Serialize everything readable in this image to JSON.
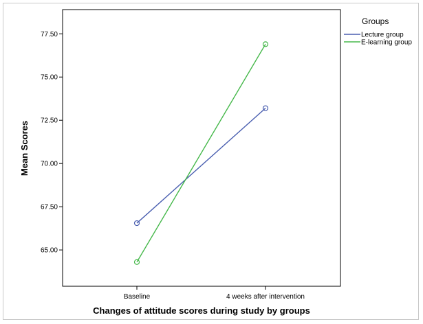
{
  "chart_data": {
    "type": "line",
    "categories": [
      "Baseline",
      "4 weeks after intervention"
    ],
    "series": [
      {
        "name": "Lecture group",
        "color": "#4a5fb0",
        "values": [
          66.55,
          73.2
        ]
      },
      {
        "name": "E-learning group",
        "color": "#45b84a",
        "values": [
          64.3,
          76.9
        ]
      }
    ],
    "xlabel": "Changes of attitude scores during study by groups",
    "ylabel": "Mean Scores",
    "ylim": [
      62.9,
      78.9
    ],
    "yticks": [
      65.0,
      67.5,
      70.0,
      72.5,
      75.0,
      77.5
    ],
    "ytick_labels": [
      "65.00",
      "67.50",
      "70.00",
      "72.50",
      "75.00",
      "77.50"
    ],
    "legend": {
      "title": "Groups",
      "position": "top-right"
    },
    "marker": "open-circle",
    "grid": false
  }
}
